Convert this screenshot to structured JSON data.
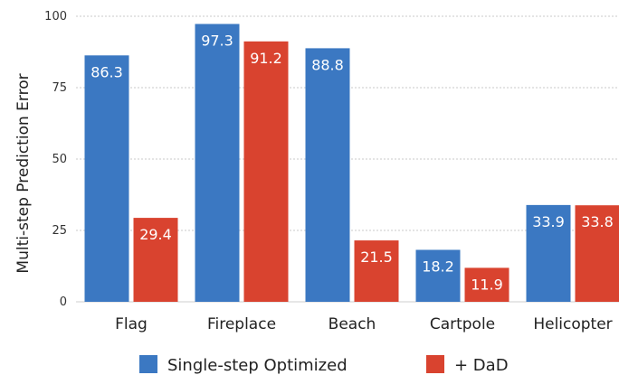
{
  "chart_data": {
    "type": "bar",
    "categories": [
      "Flag",
      "Fireplace",
      "Beach",
      "Cartpole",
      "Helicopter"
    ],
    "series": [
      {
        "name": "Single-step Optimized",
        "values": [
          86.3,
          97.3,
          88.8,
          18.2,
          33.9
        ],
        "labels": [
          "86.3",
          "97.3",
          "88.8",
          "18.2",
          "33.9"
        ],
        "color": "#3b78c2"
      },
      {
        "name": "+ DaD",
        "values": [
          29.4,
          91.2,
          21.5,
          11.9,
          33.8
        ],
        "labels": [
          "29.4",
          "91.2",
          "21.5",
          "11.9",
          "33.8"
        ],
        "color": "#d9432f"
      }
    ],
    "title": "",
    "xlabel": "",
    "ylabel": "Multi-step Prediction Error",
    "ylim": [
      0,
      100
    ],
    "yticks": [
      "0",
      "25",
      "50",
      "75",
      "100"
    ],
    "grid": true,
    "legend": "bottom"
  }
}
